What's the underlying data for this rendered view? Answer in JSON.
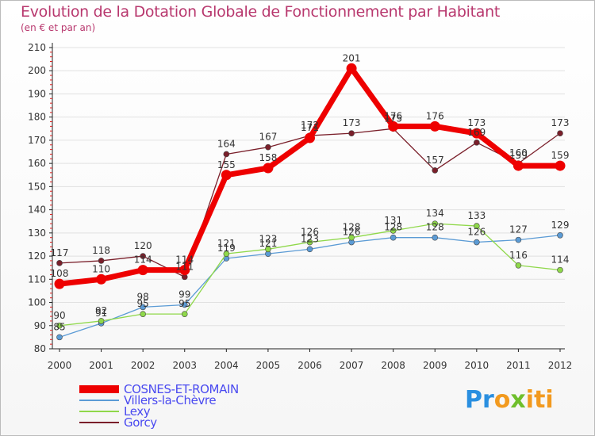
{
  "chart_data": {
    "type": "line",
    "title": "Evolution de la Dotation Globale de Fonctionnement par Habitant",
    "subtitle": "(en € et par an)",
    "xlabel": "",
    "ylabel": "",
    "categories": [
      "2000",
      "2001",
      "2002",
      "2003",
      "2004",
      "2005",
      "2006",
      "2007",
      "2008",
      "2009",
      "2010",
      "2011",
      "2012"
    ],
    "ylim": [
      80,
      210
    ],
    "yticks": [
      80,
      90,
      100,
      110,
      120,
      130,
      140,
      150,
      160,
      170,
      180,
      190,
      200,
      210
    ],
    "grid": "horizontal",
    "legend_position": "bottom-left",
    "series": [
      {
        "name": "Gorcy",
        "color": "#7a1f2a",
        "values": [
          117,
          118,
          120,
          111,
          164,
          167,
          172,
          173,
          175,
          157,
          169,
          160,
          173
        ],
        "labels": [
          "117",
          "118",
          "120",
          "111",
          "164",
          "167",
          "172",
          "173",
          "175",
          "157",
          "169",
          "160",
          "173"
        ]
      },
      {
        "name": "Villers-la-Chèvre",
        "color": "#5b9bd5",
        "values": [
          85,
          91,
          98,
          99,
          119,
          121,
          123,
          126,
          128,
          128,
          126,
          127,
          129
        ],
        "labels": [
          "85",
          "91",
          "98",
          "99",
          "119",
          "121",
          "123",
          "126",
          "128",
          "128",
          "126",
          "127",
          "129"
        ]
      },
      {
        "name": "Lexy",
        "color": "#8fd84a",
        "values": [
          90,
          92,
          95,
          95,
          121,
          123,
          126,
          128,
          131,
          134,
          133,
          116,
          114
        ],
        "labels": [
          "90",
          "92",
          "95",
          "95",
          "121",
          "123",
          "126",
          "128",
          "131",
          "134",
          "133",
          "116",
          "114"
        ]
      },
      {
        "name": "COSNES-ET-ROMAIN",
        "color": "#ee0000",
        "values": [
          108,
          110,
          114,
          114,
          155,
          158,
          171,
          201,
          176,
          176,
          173,
          159,
          159
        ],
        "labels": [
          "108",
          "110",
          "114",
          "114",
          "155",
          "158",
          "171",
          "201",
          "176",
          "176",
          "173",
          "159",
          "159"
        ]
      }
    ],
    "legend_order": [
      "COSNES-ET-ROMAIN",
      "Villers-la-Chèvre",
      "Lexy",
      "Gorcy"
    ]
  },
  "branding": {
    "logo_text_parts": [
      "Pr",
      "o",
      "x",
      "iti"
    ]
  }
}
